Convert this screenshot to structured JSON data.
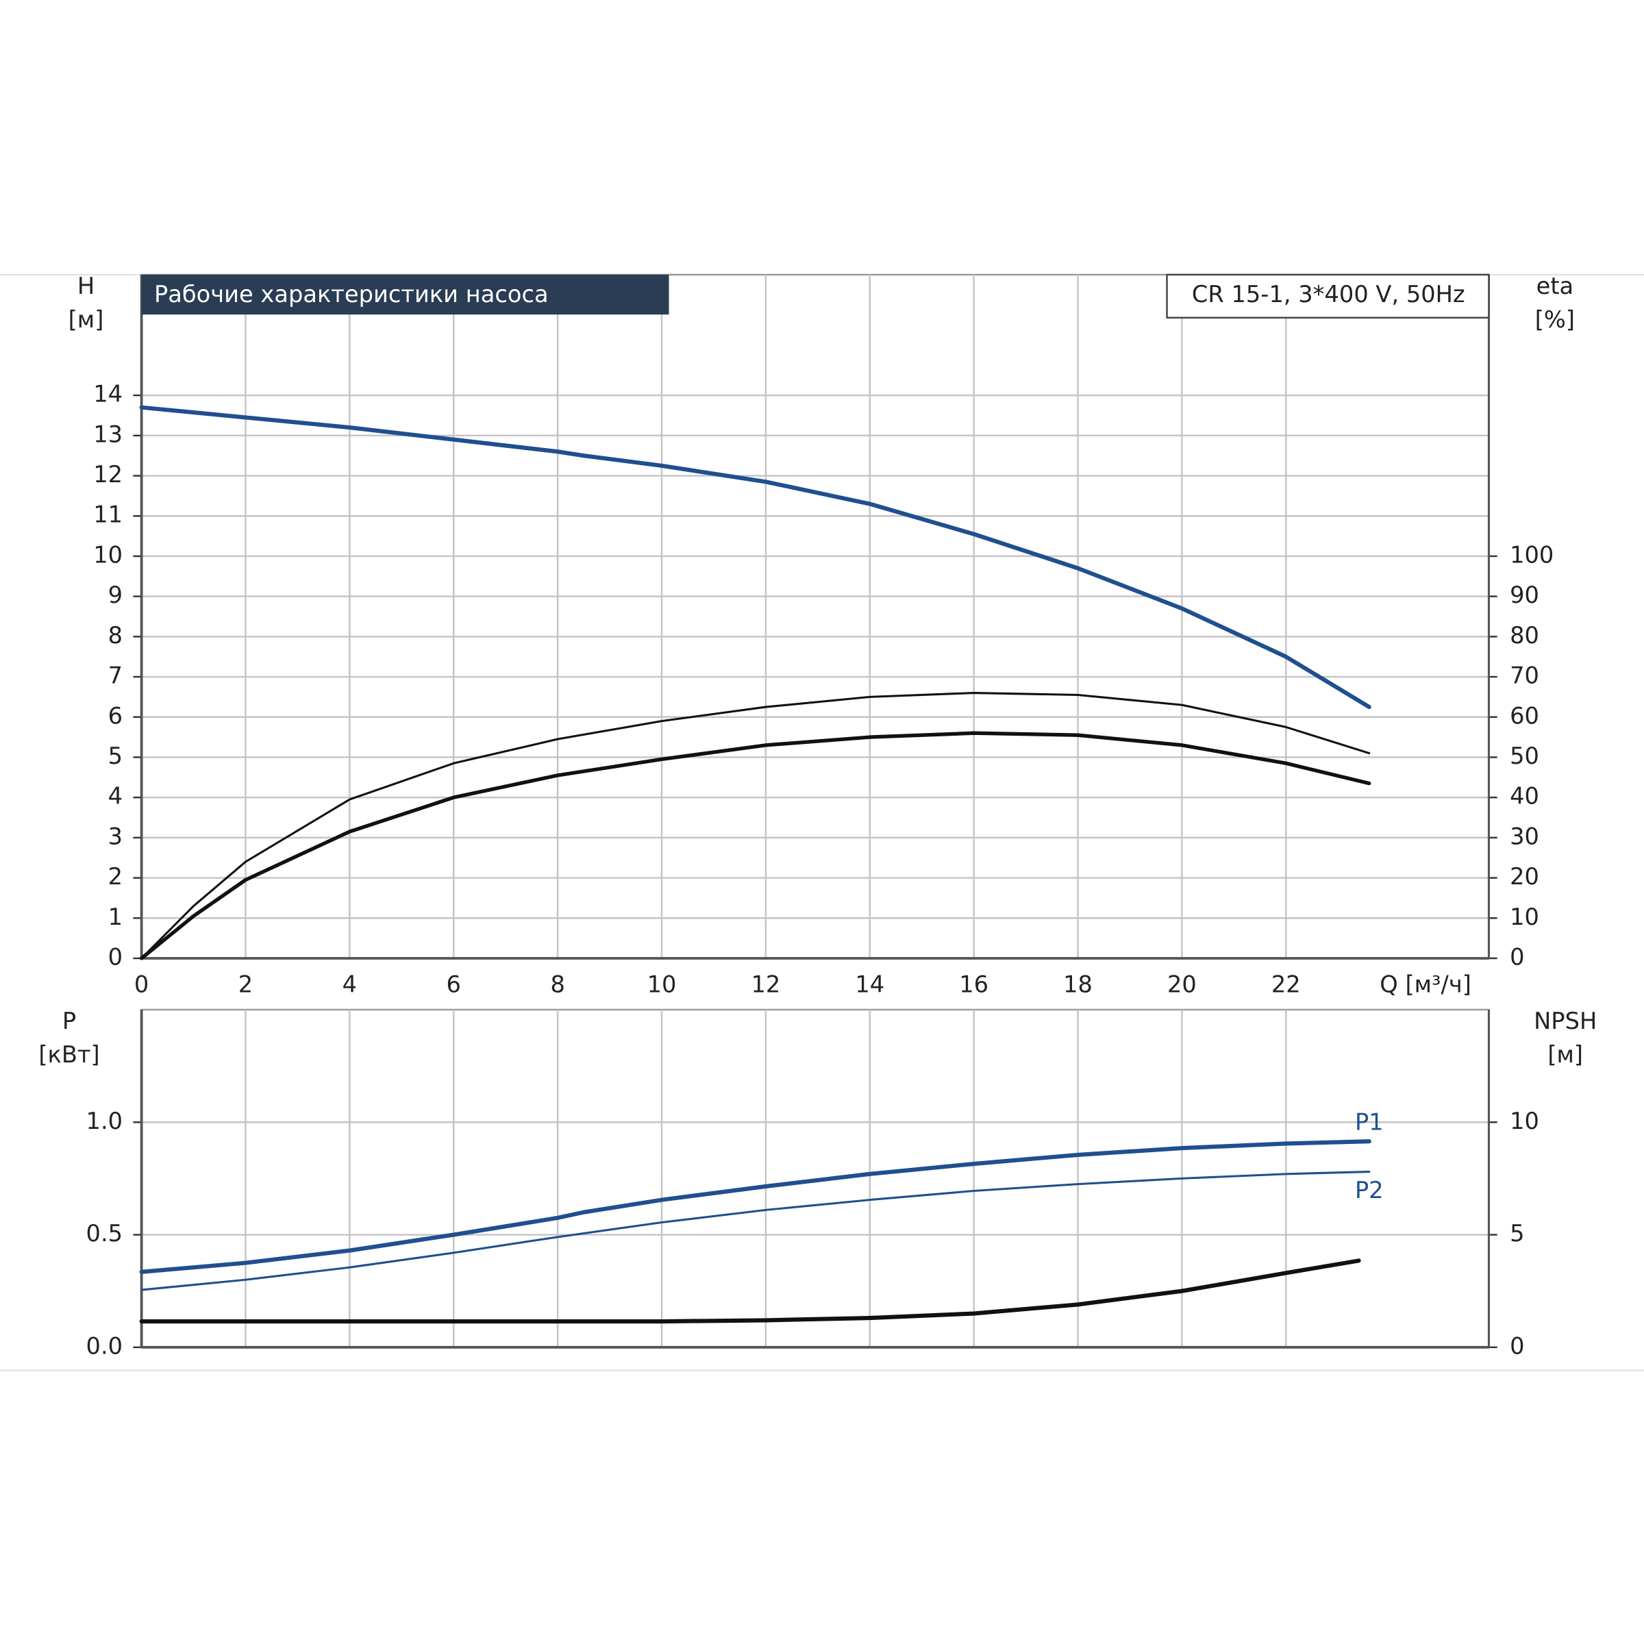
{
  "chart_data": [
    {
      "type": "line",
      "title": "Рабочие характеристики насоса",
      "annotation": "CR 15-1, 3*400 V, 50Hz",
      "ylabel": "H",
      "yunit": "[м]",
      "y2label": "eta",
      "y2unit": "[%]",
      "xlabel": "Q [м³/ч]",
      "xlim": [
        0,
        25.9
      ],
      "xticks": [
        0,
        2,
        4,
        6,
        8,
        10,
        12,
        14,
        16,
        18,
        20,
        22
      ],
      "ylim": [
        0,
        17
      ],
      "yticks": [
        0,
        1,
        2,
        3,
        4,
        5,
        6,
        7,
        8,
        9,
        10,
        11,
        12,
        13,
        14
      ],
      "y2lim": [
        0,
        170
      ],
      "y2ticks": [
        0,
        10,
        20,
        30,
        40,
        50,
        60,
        70,
        80,
        90,
        100
      ],
      "grid": true,
      "series": [
        {
          "color": "#1f4f8f",
          "x": [
            0,
            2,
            4,
            6,
            8,
            8.5,
            10,
            12,
            14,
            16,
            18,
            20,
            22,
            23.6
          ],
          "values": [
            13.7,
            13.45,
            13.2,
            12.9,
            12.6,
            12.5,
            12.25,
            11.85,
            11.3,
            10.55,
            9.7,
            8.7,
            7.5,
            6.25
          ]
        },
        {
          "color": "#111111",
          "axis": "y2",
          "x": [
            0,
            1,
            2,
            4,
            6,
            8,
            10,
            12,
            14,
            16,
            18,
            20,
            22,
            23.6
          ],
          "values": [
            0,
            13,
            24,
            39.5,
            48.5,
            54.5,
            59,
            62.5,
            65,
            66,
            65.5,
            63,
            57.5,
            51
          ]
        },
        {
          "color": "#111111",
          "axis": "y2",
          "x": [
            0,
            1,
            2,
            4,
            6,
            8,
            8.5,
            10,
            12,
            14,
            16,
            18,
            20,
            22,
            23.6
          ],
          "values": [
            0,
            10.5,
            19.5,
            31.5,
            40,
            45.5,
            46.5,
            49.5,
            53,
            55,
            56,
            55.5,
            53,
            48.5,
            43.5
          ]
        }
      ]
    },
    {
      "type": "line",
      "ylabel": "P",
      "yunit": "[кВт]",
      "y2label": "NPSH",
      "y2unit": "[м]",
      "xlim": [
        0,
        25.9
      ],
      "ylim": [
        0,
        1.5
      ],
      "yticks": [
        {
          "value": 0,
          "label": "0.0"
        },
        {
          "value": 0.5,
          "label": "0.5"
        },
        {
          "value": 1.0,
          "label": "1.0"
        }
      ],
      "y2lim": [
        0,
        15
      ],
      "y2ticks": [
        0,
        5,
        10
      ],
      "grid": true,
      "series": [
        {
          "name": "P1",
          "color": "#1f4f8f",
          "x": [
            0,
            2,
            4,
            6,
            8,
            8.5,
            10,
            12,
            14,
            16,
            18,
            20,
            22,
            23.6
          ],
          "values": [
            0.335,
            0.375,
            0.43,
            0.5,
            0.575,
            0.6,
            0.655,
            0.715,
            0.77,
            0.815,
            0.855,
            0.885,
            0.905,
            0.915
          ]
        },
        {
          "name": "P2",
          "color": "#1f4f8f",
          "x": [
            0,
            2,
            4,
            6,
            8,
            10,
            12,
            14,
            16,
            18,
            20,
            22,
            23.6
          ],
          "values": [
            0.255,
            0.3,
            0.355,
            0.42,
            0.49,
            0.555,
            0.61,
            0.655,
            0.695,
            0.725,
            0.75,
            0.77,
            0.78
          ]
        },
        {
          "color": "#111111",
          "axis": "y2",
          "x": [
            0,
            6,
            8.5,
            10,
            12,
            14,
            16,
            18,
            20,
            22,
            23.4
          ],
          "values": [
            1.15,
            1.15,
            1.15,
            1.15,
            1.2,
            1.3,
            1.5,
            1.9,
            2.5,
            3.3,
            3.85
          ]
        }
      ]
    }
  ]
}
